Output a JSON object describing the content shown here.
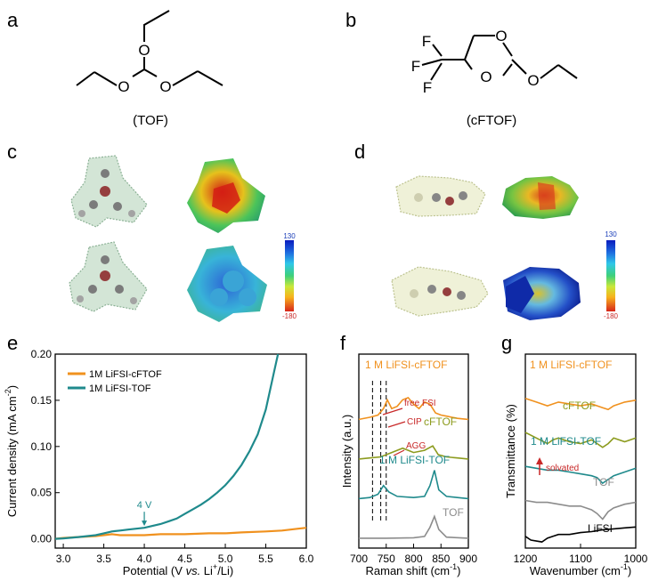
{
  "panels": {
    "a": {
      "letter": "a",
      "caption": "(TOF)",
      "atoms": [
        "O",
        "O",
        "O"
      ]
    },
    "b": {
      "letter": "b",
      "caption": "(cFTOF)",
      "atoms": [
        "F",
        "F",
        "F",
        "O",
        "O",
        "O"
      ]
    },
    "c": {
      "letter": "c",
      "scale_max": "130",
      "scale_min": "-180"
    },
    "d": {
      "letter": "d",
      "scale_max": "130",
      "scale_min": "-180"
    },
    "e": {
      "letter": "e"
    },
    "f": {
      "letter": "f"
    },
    "g": {
      "letter": "g"
    }
  },
  "colors": {
    "orange": "#f0911e",
    "teal": "#1f8a8c",
    "olive": "#8c9b1e",
    "gray": "#8c8c8c",
    "red_annotation": "#c82828"
  },
  "chart_data": [
    {
      "type": "line",
      "panel": "e",
      "xlabel": "Potential (V vs. Li+/Li)",
      "xlabel_parts": {
        "pre": "Potential (V ",
        "italic": "vs.",
        "mid": " Li",
        "sup": "+",
        "post": "/Li)"
      },
      "ylabel": "Current density (mA cm-2)",
      "ylabel_parts": {
        "pre": "Current density (mA cm",
        "sup": "-2",
        "post": ")"
      },
      "xlim": [
        2.9,
        6.0
      ],
      "ylim": [
        -0.01,
        0.2
      ],
      "xticks": [
        "3.0",
        "3.5",
        "4.0",
        "4.5",
        "5.0",
        "5.5",
        "6.0"
      ],
      "yticks": [
        "0.00",
        "0.05",
        "0.10",
        "0.15",
        "0.20"
      ],
      "annotations": [
        {
          "text": "4 V",
          "x": 4.0,
          "y": 0.012
        }
      ],
      "legend": "top-left",
      "series": [
        {
          "name": "1M LiFSI-cFTOF",
          "color": "#f0911e",
          "x": [
            2.9,
            3.0,
            3.2,
            3.4,
            3.5,
            3.6,
            3.7,
            3.8,
            3.9,
            4.0,
            4.2,
            4.5,
            4.8,
            5.0,
            5.2,
            5.5,
            5.7,
            5.9,
            6.0
          ],
          "y": [
            0.0,
            0.001,
            0.002,
            0.003,
            0.004,
            0.005,
            0.004,
            0.004,
            0.004,
            0.004,
            0.005,
            0.005,
            0.006,
            0.006,
            0.007,
            0.008,
            0.009,
            0.011,
            0.012
          ]
        },
        {
          "name": "1M LiFSI-TOF",
          "color": "#1f8a8c",
          "x": [
            2.9,
            3.0,
            3.2,
            3.4,
            3.5,
            3.6,
            3.7,
            3.8,
            3.9,
            4.0,
            4.1,
            4.2,
            4.3,
            4.4,
            4.5,
            4.6,
            4.7,
            4.8,
            4.9,
            5.0,
            5.1,
            5.2,
            5.3,
            5.4,
            5.5,
            5.6,
            5.65
          ],
          "y": [
            0.0,
            0.0005,
            0.002,
            0.004,
            0.006,
            0.008,
            0.009,
            0.01,
            0.011,
            0.012,
            0.014,
            0.016,
            0.019,
            0.022,
            0.027,
            0.032,
            0.037,
            0.043,
            0.05,
            0.058,
            0.068,
            0.08,
            0.095,
            0.113,
            0.14,
            0.18,
            0.2
          ]
        }
      ]
    },
    {
      "type": "line",
      "panel": "f",
      "xlabel": "Raman shift (cm-1)",
      "xlabel_parts": {
        "pre": "Raman shift (cm",
        "sup": "-1",
        "post": ")"
      },
      "ylabel": "Intensity (a.u.)",
      "xlim": [
        700,
        900
      ],
      "xticks": [
        "700",
        "750",
        "800",
        "850",
        "900"
      ],
      "reference_lines": [
        725,
        740,
        750
      ],
      "annotations": [
        "free FSI",
        "CIP",
        "AGG"
      ],
      "series": [
        {
          "name": "1 M LiFSI-cFTOF",
          "color": "#f0911e",
          "offset": 4,
          "x": [
            700,
            720,
            735,
            745,
            752,
            760,
            770,
            780,
            790,
            800,
            810,
            820,
            830,
            840,
            850,
            860,
            870,
            880,
            900
          ],
          "y": [
            0.0,
            0.1,
            0.2,
            0.5,
            0.9,
            0.5,
            0.6,
            0.9,
            1.0,
            0.7,
            0.5,
            0.8,
            0.7,
            0.3,
            0.2,
            0.15,
            0.1,
            0.05,
            0.0
          ]
        },
        {
          "name": "cFTOF",
          "color": "#8c9b1e",
          "offset": 3,
          "x": [
            700,
            720,
            740,
            760,
            780,
            790,
            800,
            820,
            835,
            845,
            860,
            880,
            900
          ],
          "y": [
            0.0,
            0.05,
            0.1,
            0.3,
            0.5,
            0.4,
            0.3,
            0.4,
            0.6,
            0.2,
            0.1,
            0.05,
            0.0
          ]
        },
        {
          "name": "1 M LiFSI-TOF",
          "color": "#1f8a8c",
          "offset": 2,
          "x": [
            700,
            720,
            735,
            745,
            755,
            770,
            800,
            820,
            830,
            838,
            846,
            860,
            880,
            900
          ],
          "y": [
            0.0,
            0.05,
            0.2,
            0.6,
            0.3,
            0.1,
            0.05,
            0.1,
            0.6,
            1.3,
            0.4,
            0.1,
            0.05,
            0.0
          ]
        },
        {
          "name": "TOF",
          "color": "#8c8c8c",
          "offset": 1,
          "x": [
            700,
            750,
            800,
            820,
            830,
            838,
            846,
            860,
            900
          ],
          "y": [
            0.0,
            0.0,
            0.02,
            0.08,
            0.5,
            1.0,
            0.4,
            0.05,
            0.0
          ]
        }
      ]
    },
    {
      "type": "line",
      "panel": "g",
      "xlabel": "Wavenumber (cm-1)",
      "xlabel_parts": {
        "pre": "Wavenumber (cm",
        "sup": "-1",
        "post": ")"
      },
      "ylabel": "Transmittance (%)",
      "xlim": [
        1200,
        1000
      ],
      "xticks": [
        "1200",
        "1100",
        "1000"
      ],
      "annotations": [
        "solvated"
      ],
      "series": [
        {
          "name": "1 M LiFSI-cFTOF",
          "color": "#f0911e",
          "offset": 5,
          "x": [
            1200,
            1180,
            1160,
            1150,
            1140,
            1120,
            1100,
            1080,
            1060,
            1050,
            1040,
            1020,
            1000
          ],
          "y": [
            0.0,
            -0.2,
            -0.4,
            -0.3,
            -0.2,
            -0.3,
            -0.4,
            -0.3,
            -0.5,
            -0.6,
            -0.4,
            -0.2,
            -0.1
          ]
        },
        {
          "name": "cFTOF",
          "color": "#8c9b1e",
          "offset": 4,
          "x": [
            1200,
            1180,
            1160,
            1150,
            1140,
            1120,
            1100,
            1080,
            1060,
            1050,
            1040,
            1020,
            1000
          ],
          "y": [
            0.0,
            -0.3,
            -0.6,
            -0.4,
            -0.3,
            -0.5,
            -0.6,
            -0.4,
            -0.8,
            -0.6,
            -0.3,
            -0.5,
            -0.3
          ]
        },
        {
          "name": "1 M LiFSI-TOF",
          "color": "#1f8a8c",
          "offset": 3,
          "x": [
            1200,
            1180,
            1160,
            1140,
            1120,
            1100,
            1080,
            1070,
            1060,
            1050,
            1040,
            1020,
            1000
          ],
          "y": [
            0.0,
            -0.1,
            -0.2,
            -0.2,
            -0.3,
            -0.4,
            -0.5,
            -0.6,
            -0.9,
            -0.7,
            -0.5,
            -0.3,
            -0.1
          ]
        },
        {
          "name": "TOF",
          "color": "#8c8c8c",
          "offset": 2,
          "x": [
            1200,
            1180,
            1160,
            1140,
            1120,
            1100,
            1080,
            1070,
            1060,
            1050,
            1040,
            1020,
            1000
          ],
          "y": [
            0.0,
            -0.1,
            -0.1,
            -0.2,
            -0.3,
            -0.3,
            -0.5,
            -0.7,
            -1.0,
            -0.6,
            -0.4,
            -0.2,
            -0.1
          ]
        },
        {
          "name": "LiFSI",
          "color": "#000000",
          "offset": 1,
          "x": [
            1200,
            1190,
            1180,
            1170,
            1160,
            1150,
            1140,
            1120,
            1100,
            1080,
            1060,
            1040,
            1020,
            1000
          ],
          "y": [
            -0.1,
            -0.3,
            -0.35,
            -0.4,
            -0.2,
            -0.1,
            0.0,
            0.0,
            0.1,
            0.15,
            0.25,
            0.3,
            0.35,
            0.4
          ]
        }
      ]
    }
  ]
}
